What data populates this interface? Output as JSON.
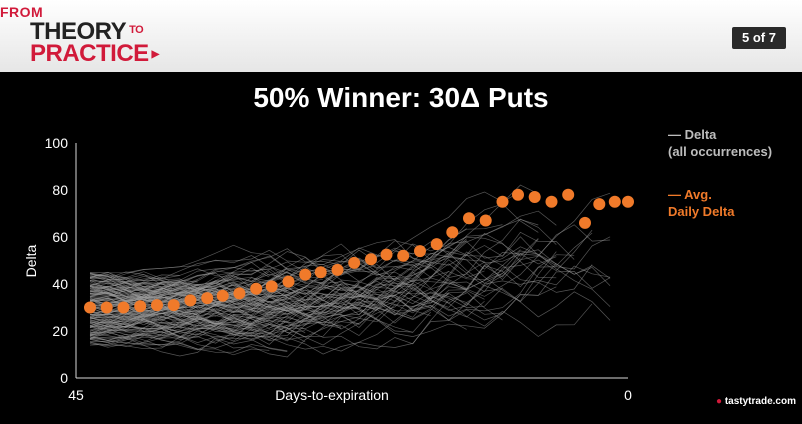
{
  "header": {
    "logo": {
      "line1": "FROM",
      "line2": "THEORY",
      "to": "TO",
      "line3": "PRACTICE"
    },
    "page_badge": "5 of 7"
  },
  "footer": {
    "brand": "tastytrade",
    "brand_suffix": ".com"
  },
  "colors": {
    "avg": "#f07a2a",
    "occurrences": "#9a9a9a",
    "accent": "#d11a3a"
  },
  "chart_data": {
    "type": "scatter",
    "title": "50% Winner: 30Δ Puts",
    "xlabel": "Days-to-expiration",
    "ylabel": "Delta",
    "x_ticks": [
      "45",
      "0"
    ],
    "y_ticks": [
      0,
      20,
      40,
      60,
      80,
      100
    ],
    "xlim": [
      45,
      0
    ],
    "ylim": [
      0,
      100
    ],
    "grid": false,
    "legend_position": "right",
    "legend": [
      {
        "line1": "Delta",
        "line2": "(all occurrences)",
        "color": "#bdbdbd"
      },
      {
        "line1": "Avg.",
        "line2": "Daily Delta",
        "color": "#f07a2a"
      }
    ],
    "series": [
      {
        "name": "Avg. Daily Delta",
        "x": [
          45,
          43.6,
          42.2,
          40.8,
          39.4,
          38,
          36.6,
          35.2,
          33.9,
          32.5,
          31.1,
          29.8,
          28.4,
          27,
          25.7,
          24.3,
          22.9,
          21.5,
          20.2,
          18.8,
          17.4,
          16,
          14.7,
          13.3,
          11.9,
          10.5,
          9.2,
          7.8,
          6.4,
          5,
          3.6,
          2.4,
          1.1,
          0
        ],
        "values": [
          30,
          30,
          30,
          30.5,
          31,
          31,
          33,
          34,
          35,
          36,
          38,
          39,
          41,
          44,
          45,
          46,
          49,
          50.5,
          52.5,
          52,
          54,
          57,
          62,
          68,
          67,
          75,
          78,
          77,
          75,
          78,
          66,
          74,
          75,
          75
        ]
      }
    ]
  }
}
